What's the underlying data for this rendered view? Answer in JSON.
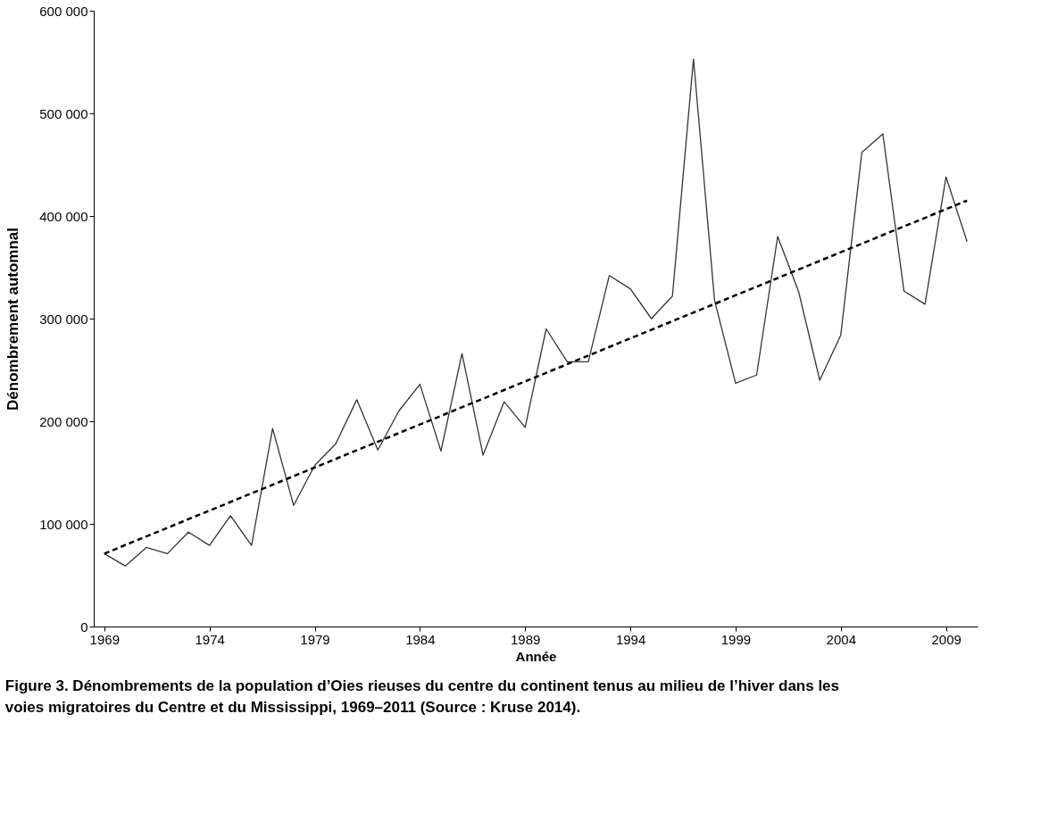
{
  "chart_data": {
    "type": "line",
    "xlabel": "Année",
    "ylabel": "Dénombrement automnal",
    "x": [
      1969,
      1970,
      1971,
      1972,
      1973,
      1974,
      1975,
      1976,
      1977,
      1978,
      1979,
      1980,
      1981,
      1982,
      1983,
      1984,
      1985,
      1986,
      1987,
      1988,
      1989,
      1990,
      1991,
      1992,
      1993,
      1994,
      1995,
      1996,
      1997,
      1998,
      1999,
      2000,
      2001,
      2002,
      2003,
      2004,
      2005,
      2006,
      2007,
      2008,
      2009,
      2010
    ],
    "series": [
      {
        "color": "#333333",
        "line_style": "solid",
        "values": [
          71000,
          59000,
          77000,
          71000,
          92000,
          79000,
          108000,
          79000,
          193000,
          118000,
          157000,
          178000,
          221000,
          172000,
          210000,
          236000,
          171000,
          266000,
          167000,
          219000,
          194000,
          290000,
          258000,
          258000,
          342000,
          329000,
          300000,
          322000,
          553000,
          318000,
          237000,
          245000,
          380000,
          326000,
          240000,
          284000,
          462000,
          480000,
          327000,
          314000,
          438000,
          375000
        ]
      },
      {
        "type": "line",
        "color": "#000000",
        "line_style": "dashed",
        "x": [
          1969,
          2010
        ],
        "values": [
          71000,
          415000
        ]
      }
    ],
    "xlim": [
      1968.5,
      2010.5
    ],
    "xticks": [
      1969,
      1974,
      1979,
      1984,
      1989,
      1994,
      1999,
      2004,
      2009
    ],
    "ylim": [
      0,
      600000
    ],
    "yticks": [
      {
        "value": 0,
        "label": "0"
      },
      {
        "value": 100000,
        "label": "100 000"
      },
      {
        "value": 200000,
        "label": "200 000"
      },
      {
        "value": 300000,
        "label": "300 000"
      },
      {
        "value": 400000,
        "label": "400 000"
      },
      {
        "value": 500000,
        "label": "500 000"
      },
      {
        "value": 600000,
        "label": "600 000"
      }
    ],
    "grid": false,
    "marker": "none",
    "annotations": [
      "Figure 3. Dénombrements de la population d’Oies rieuses du centre du continent tenus au milieu de l’hiver dans les voies migratoires du Centre et du Mississippi, 1969–2011 (Source : Kruse 2014)."
    ]
  }
}
